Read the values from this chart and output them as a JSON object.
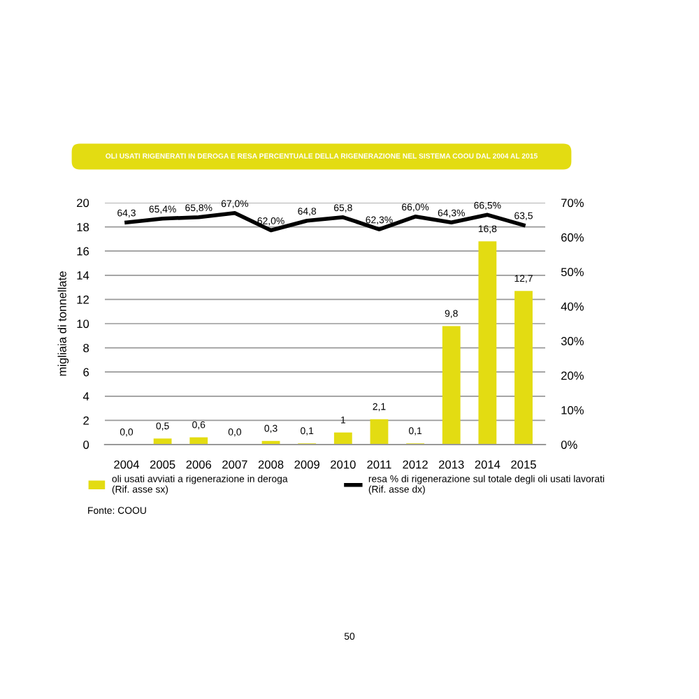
{
  "chart_data": {
    "type": "bar",
    "title": "OLI USATI RIGENERATI IN DEROGA E RESA PERCENTUALE DELLA RIGENERAZIONE NEL SISTEMA COOU DAL 2004 AL 2015",
    "ylabel": "migliaia di tonnellate",
    "categories": [
      "2004",
      "2005",
      "2006",
      "2007",
      "2008",
      "2009",
      "2010",
      "2011",
      "2012",
      "2013",
      "2014",
      "2015"
    ],
    "series": [
      {
        "name": "oli usati avviati a rigenerazione in deroga\n(Rif. asse sx)",
        "color": "#e3dc12",
        "values": [
          0.0,
          0.5,
          0.6,
          0.0,
          0.3,
          0.1,
          1,
          2.1,
          0.1,
          9.8,
          16.8,
          12.7
        ],
        "value_labels": [
          "0,0",
          "0,5",
          "0,6",
          "0,0",
          "0,3",
          "0,1",
          "1",
          "2,1",
          "0,1",
          "9,8",
          "16,8",
          "12,7"
        ]
      },
      {
        "name": "resa % di rigenerazione sul totale degli oli usati lavorati\n(Rif. asse dx)",
        "type": "line",
        "axis": "y2",
        "color": "#000000",
        "values": [
          64.3,
          65.4,
          65.8,
          67.0,
          62.0,
          64.8,
          65.8,
          62.3,
          66.0,
          64.3,
          66.5,
          63.5
        ],
        "value_labels": [
          "64,3",
          "65,4%",
          "65,8%",
          "67,0%",
          "62,0%",
          "64,8",
          "65,8",
          "62,3%",
          "66,0%",
          "64,3%",
          "66,5%",
          "63,5"
        ]
      }
    ],
    "ylim": [
      0,
      20
    ],
    "yticks": [
      0,
      2,
      4,
      6,
      8,
      10,
      12,
      14,
      16,
      18,
      20
    ],
    "y2lim": [
      0,
      70
    ],
    "y2ticks": [
      {
        "value": 0,
        "label": "0%"
      },
      {
        "value": 10,
        "label": "10%"
      },
      {
        "value": 20,
        "label": "20%"
      },
      {
        "value": 30,
        "label": "30%"
      },
      {
        "value": 40,
        "label": "40%"
      },
      {
        "value": 50,
        "label": "50%"
      },
      {
        "value": 60,
        "label": "60%"
      },
      {
        "value": 70,
        "label": "70%"
      }
    ],
    "grid": "y",
    "legend": "bottom",
    "marker": "none",
    "line_style": "solid",
    "annotations": [
      "Fonte: COOU",
      "50"
    ]
  }
}
